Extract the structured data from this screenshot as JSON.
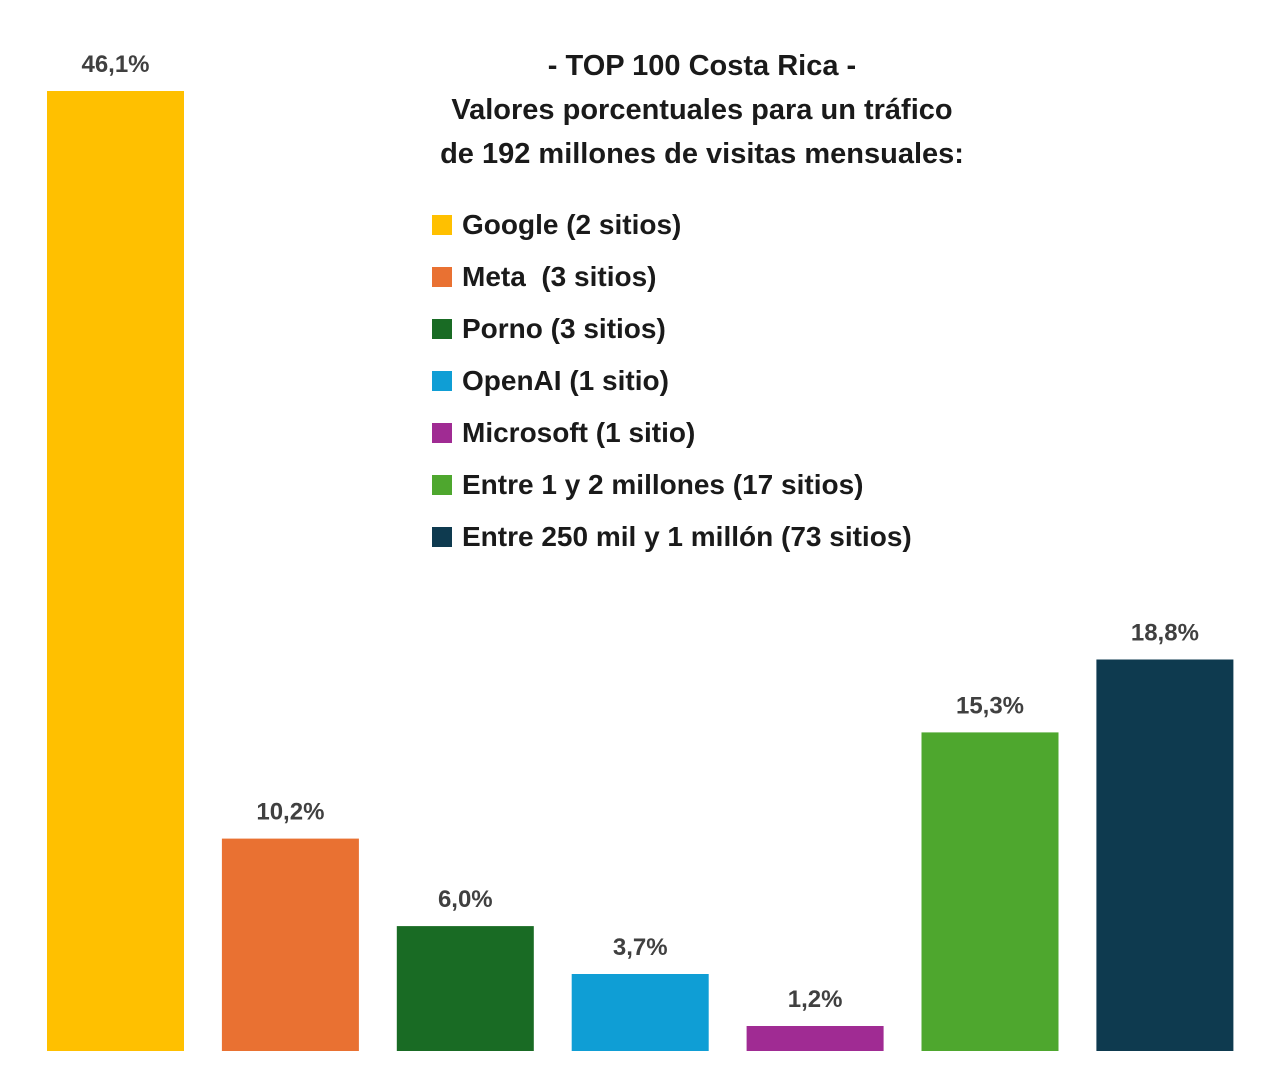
{
  "chart_data": {
    "type": "bar",
    "title_lines": [
      "- TOP 100 Costa Rica -",
      "Valores porcentuales para un tráfico",
      "de 192 millones de visitas mensuales:"
    ],
    "categories": [
      "Google (2 sitios)",
      "Meta  (3 sitios)",
      "Porno (3 sitios)",
      "OpenAI (1 sitio)",
      "Microsoft (1 sitio)",
      "Entre 1 y 2 millones (17 sitios)",
      "Entre 250 mil y 1 millón (73 sitios)"
    ],
    "values": [
      46.1,
      10.2,
      6.0,
      3.7,
      1.2,
      15.3,
      18.8
    ],
    "value_labels": [
      "46,1%",
      "10,2%",
      "6,0%",
      "3,7%",
      "1,2%",
      "15,3%",
      "18,8%"
    ],
    "colors": [
      "#FFC000",
      "#E97132",
      "#196B24",
      "#0F9ED5",
      "#A02B93",
      "#4EA72E",
      "#0E3A4F"
    ],
    "ylim": [
      0,
      46.1
    ],
    "grid": false,
    "legend_position": "top-right"
  }
}
